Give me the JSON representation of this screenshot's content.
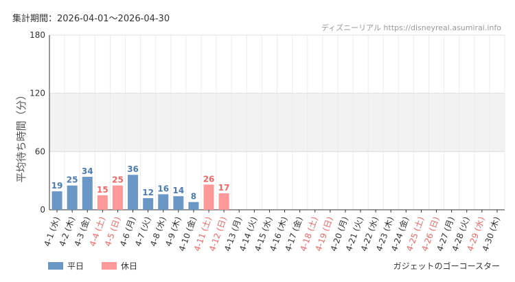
{
  "header": {
    "period": "集計期間：2026-04-01～2026-04-30",
    "source": "ディズニーリアル https://disneyreal.asumirai.info"
  },
  "legend": {
    "weekday": "平日",
    "holiday": "休日",
    "weekday_color": "#6b97c7",
    "holiday_color": "#ff9999",
    "weekday_label_color": "#4a7bb0",
    "holiday_label_color": "#ee6666"
  },
  "footer": {
    "attraction": "ガジェットのゴーコースター"
  },
  "chart_data": {
    "type": "bar",
    "ylabel": "平均待ち時間（分）",
    "ylim": [
      0,
      180
    ],
    "yticks": [
      0,
      60,
      120,
      180
    ],
    "shaded_band": [
      60,
      120
    ],
    "grid": true,
    "legend_position": "bottom-left",
    "categories": [
      "4-1 (水)",
      "4-2 (木)",
      "4-3 (金)",
      "4-4 (土)",
      "4-5 (日)",
      "4-6 (月)",
      "4-7 (火)",
      "4-8 (水)",
      "4-9 (木)",
      "4-10 (金)",
      "4-11 (土)",
      "4-12 (日)",
      "4-13 (月)",
      "4-14 (火)",
      "4-15 (水)",
      "4-16 (木)",
      "4-17 (金)",
      "4-18 (土)",
      "4-19 (日)",
      "4-20 (月)",
      "4-21 (火)",
      "4-22 (水)",
      "4-23 (木)",
      "4-24 (金)",
      "4-25 (土)",
      "4-26 (日)",
      "4-27 (月)",
      "4-28 (火)",
      "4-29 (水)",
      "4-30 (木)"
    ],
    "holiday": [
      false,
      false,
      false,
      true,
      true,
      false,
      false,
      false,
      false,
      false,
      true,
      true,
      false,
      false,
      false,
      false,
      false,
      true,
      true,
      false,
      false,
      false,
      false,
      false,
      true,
      true,
      false,
      false,
      true,
      false
    ],
    "values": [
      19,
      25,
      34,
      15,
      25,
      36,
      12,
      16,
      14,
      8,
      26,
      17,
      null,
      null,
      null,
      null,
      null,
      null,
      null,
      null,
      null,
      null,
      null,
      null,
      null,
      null,
      null,
      null,
      null,
      null
    ]
  }
}
